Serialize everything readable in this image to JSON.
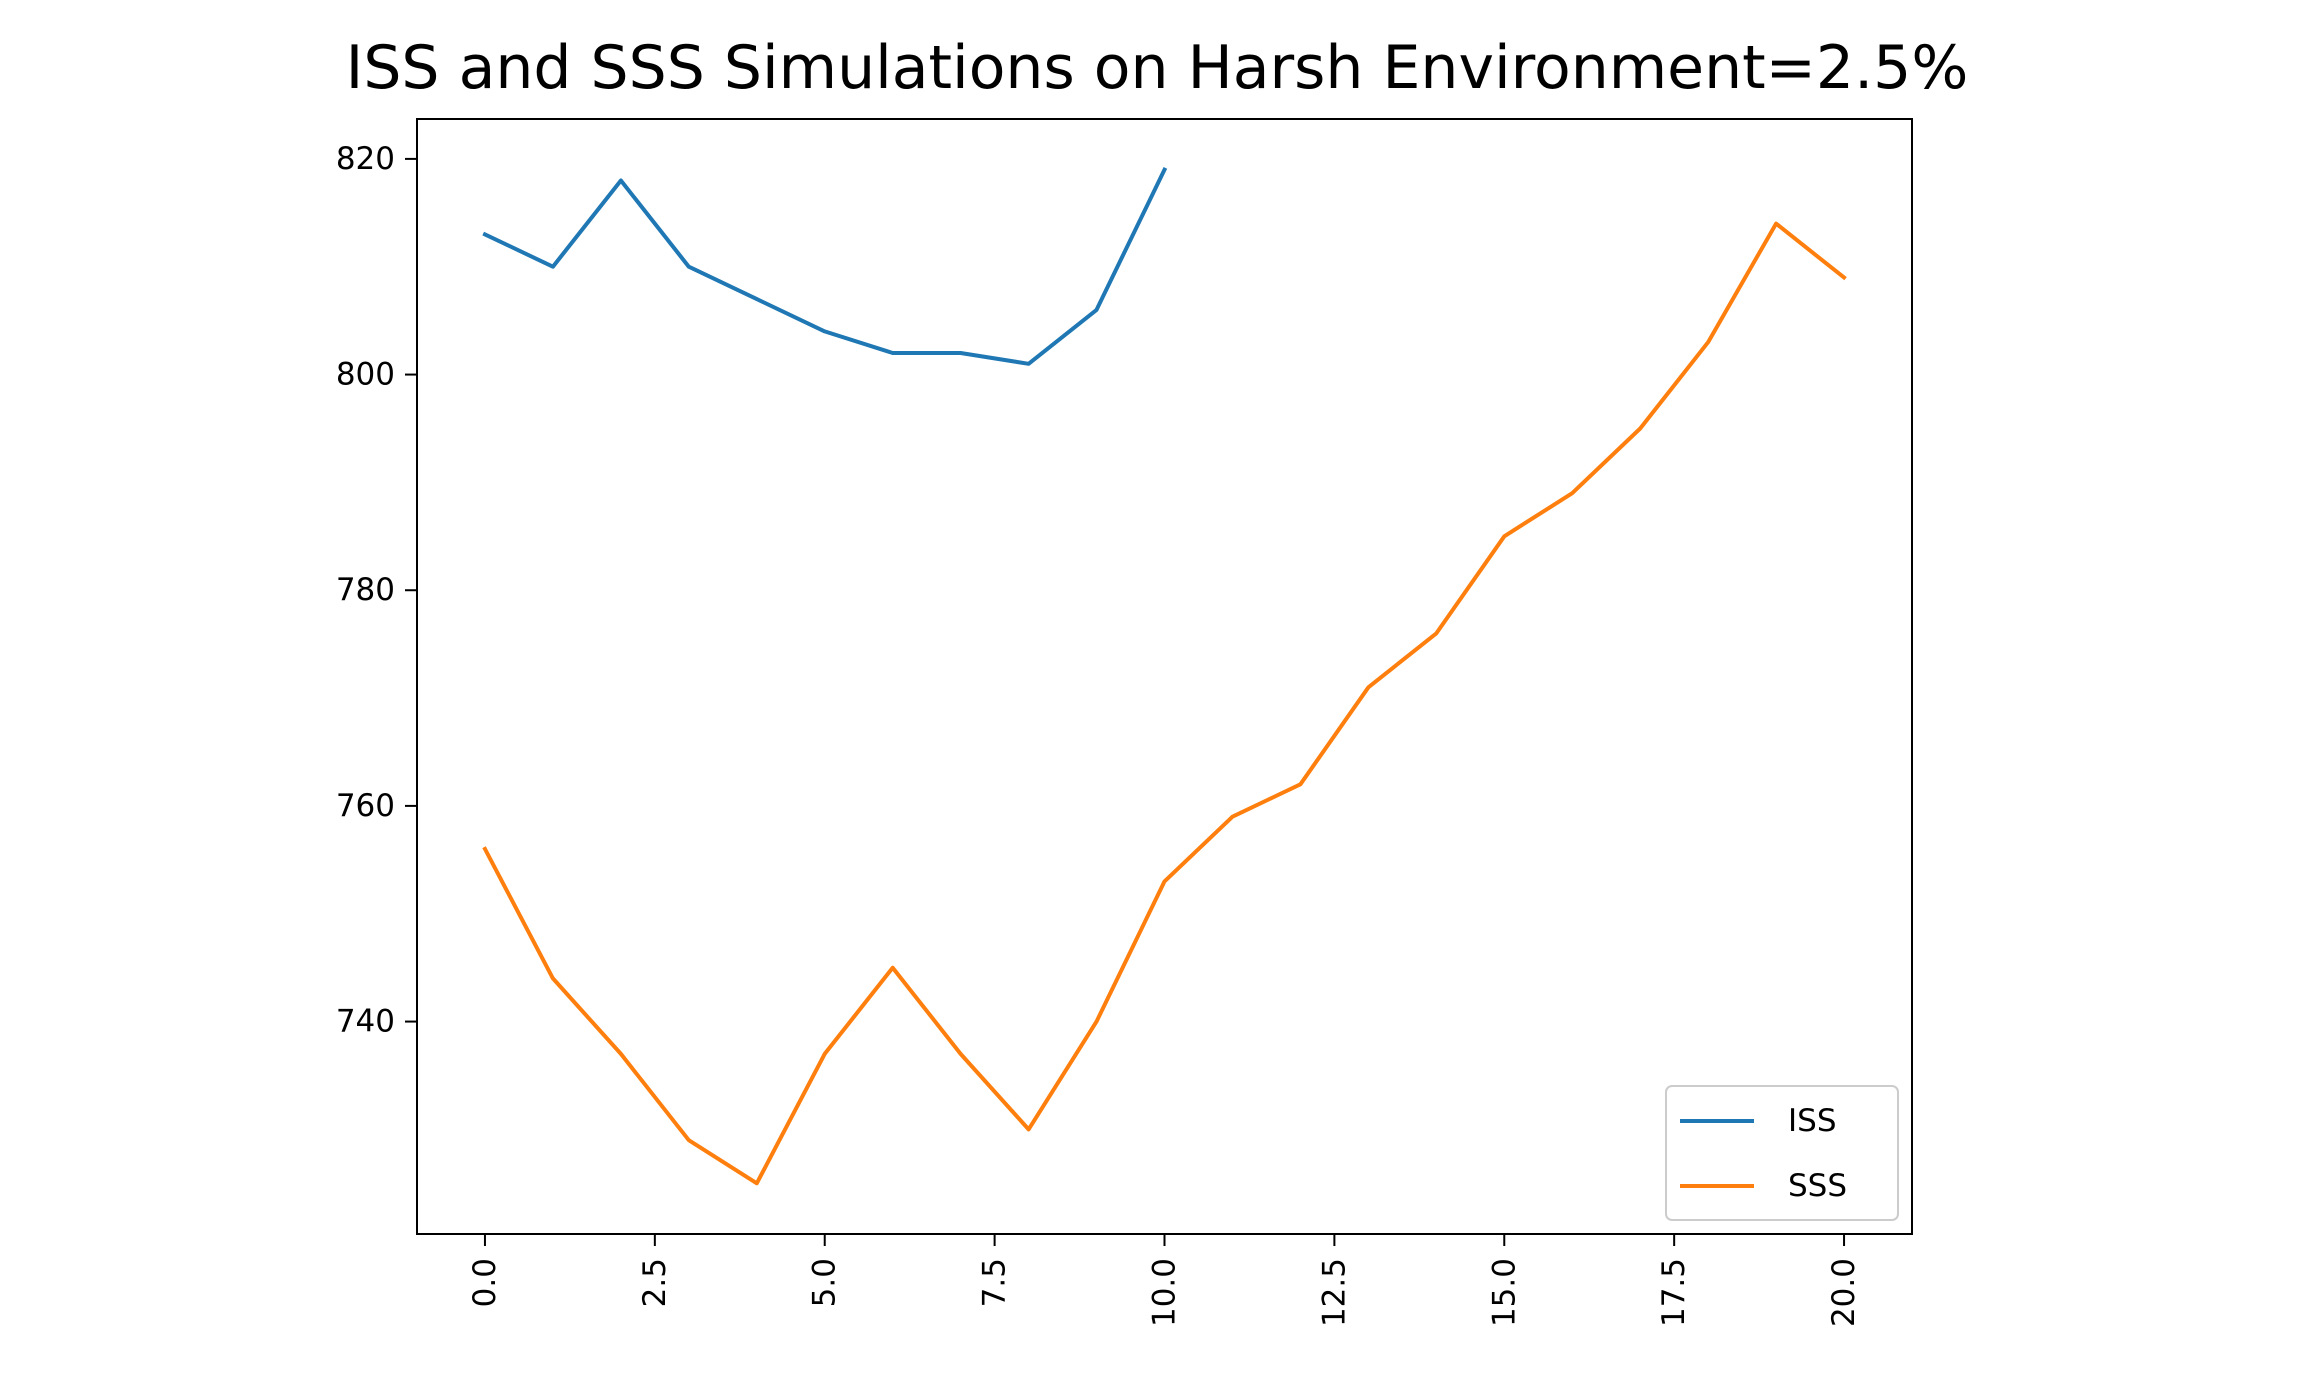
{
  "chart_data": {
    "type": "line",
    "title": "ISS and SSS Simulations on Harsh Environment=2.5%",
    "xlabel": "",
    "ylabel": "",
    "xlim": [
      -1,
      21
    ],
    "ylim": [
      720.3,
      823.7
    ],
    "x_ticks": [
      "0.0",
      "2.5",
      "5.0",
      "7.5",
      "10.0",
      "12.5",
      "15.0",
      "17.5",
      "20.0"
    ],
    "y_ticks": [
      "740",
      "760",
      "780",
      "800",
      "820"
    ],
    "grid": false,
    "legend_position": "lower-right",
    "series": [
      {
        "name": "ISS",
        "color": "#1f77b4",
        "x": [
          0,
          1,
          2,
          3,
          4,
          5,
          6,
          7,
          8,
          9,
          10
        ],
        "values": [
          813,
          810,
          818,
          810,
          807,
          804,
          802,
          802,
          801,
          806,
          819
        ]
      },
      {
        "name": "SSS",
        "color": "#ff7f0e",
        "x": [
          0,
          1,
          2,
          3,
          4,
          5,
          6,
          7,
          8,
          9,
          10,
          11,
          12,
          13,
          14,
          15,
          16,
          17,
          18,
          19,
          20
        ],
        "values": [
          756,
          744,
          737,
          729,
          725,
          737,
          745,
          737,
          730,
          740,
          753,
          759,
          762,
          771,
          776,
          785,
          789,
          795,
          803,
          814,
          809
        ]
      }
    ]
  }
}
